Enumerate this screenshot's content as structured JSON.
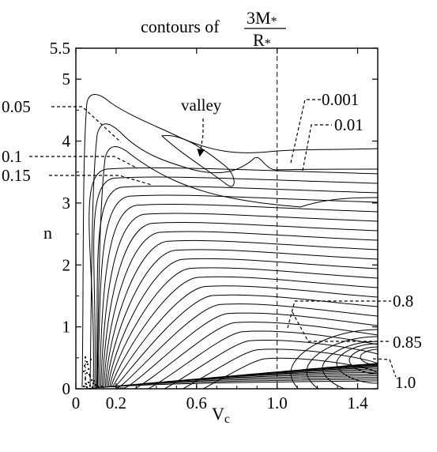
{
  "chart_data": {
    "type": "contour",
    "title": {
      "prefix": "contours of",
      "numerator": "3M",
      "numerator_sub": "*",
      "denominator": "R",
      "denominator_sub": "*"
    },
    "xlabel": "V",
    "xlabel_sub": "c",
    "ylabel": "n",
    "xlim": [
      0,
      1.5
    ],
    "ylim": [
      0,
      5.5
    ],
    "x_ticks": [
      {
        "value": 0,
        "label": "0"
      },
      {
        "value": 0.2,
        "label": "0.2"
      },
      {
        "value": 0.6,
        "label": "0.6"
      },
      {
        "value": 1.0,
        "label": "1.0"
      },
      {
        "value": 1.4,
        "label": "1.4"
      }
    ],
    "y_ticks": [
      {
        "value": 0,
        "label": "0"
      },
      {
        "value": 1,
        "label": "1"
      },
      {
        "value": 2,
        "label": "2"
      },
      {
        "value": 3,
        "label": "3"
      },
      {
        "value": 4,
        "label": "4"
      },
      {
        "value": 5,
        "label": "5"
      },
      {
        "value": 5.5,
        "label": "5.5"
      }
    ],
    "reference_line": {
      "x": 1.0,
      "style": "dashed"
    },
    "contour_levels": [
      0.001,
      0.01,
      0.05,
      0.1,
      0.15,
      0.2,
      0.25,
      0.3,
      0.35,
      0.4,
      0.45,
      0.5,
      0.55,
      0.6,
      0.65,
      0.7,
      0.75,
      0.8,
      0.85,
      0.9,
      0.95,
      1.0
    ],
    "labeled_contours": [
      {
        "label": "0.05",
        "side": "left"
      },
      {
        "label": "0.1",
        "side": "left"
      },
      {
        "label": "0.15",
        "side": "left"
      },
      {
        "label": "0.001",
        "side": "right"
      },
      {
        "label": "0.01",
        "side": "right"
      },
      {
        "label": "0.8",
        "side": "right"
      },
      {
        "label": "0.85",
        "side": "right"
      },
      {
        "label": "1.0",
        "side": "right"
      }
    ],
    "annotations": [
      {
        "text": "valley",
        "points_to": [
          0.59,
          3.6
        ]
      }
    ],
    "grid": false,
    "legend": "none"
  }
}
